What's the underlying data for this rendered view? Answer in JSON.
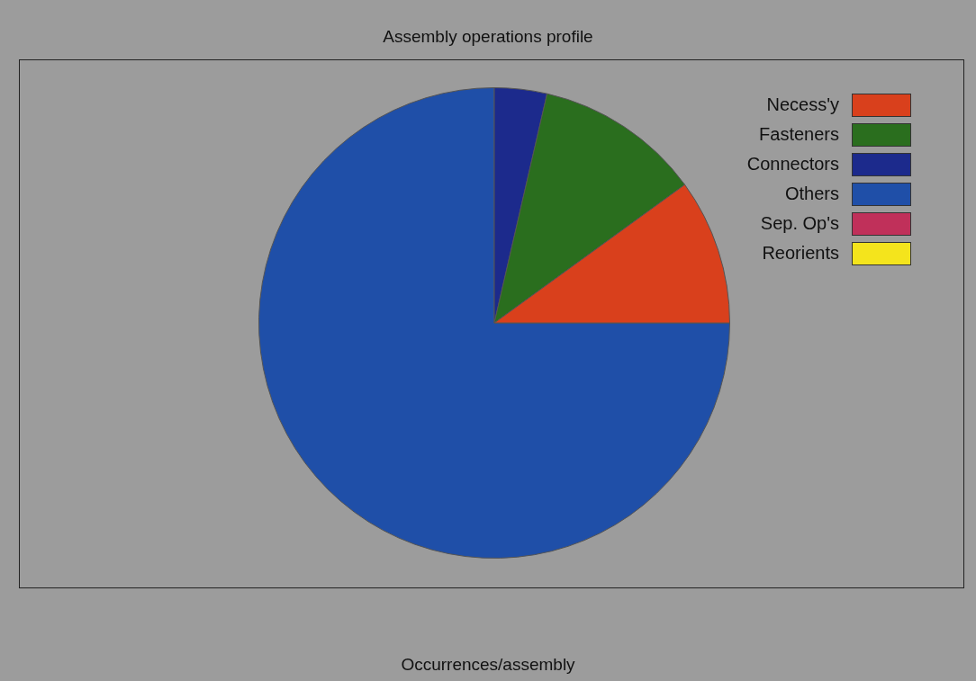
{
  "chart_data": {
    "type": "pie",
    "title": "Assembly operations profile",
    "xlabel": "Occurrences/assembly",
    "categories": [
      "Necess'y",
      "Fasteners",
      "Connectors",
      "Others",
      "Sep. Op's",
      "Reorients"
    ],
    "values": [
      10,
      11.4,
      3.6,
      75,
      0,
      0
    ],
    "colors": [
      "#d9401c",
      "#2a6e1e",
      "#1c2a8c",
      "#1f4fa8",
      "#c0305a",
      "#f4e41c"
    ],
    "legend": "top right"
  }
}
